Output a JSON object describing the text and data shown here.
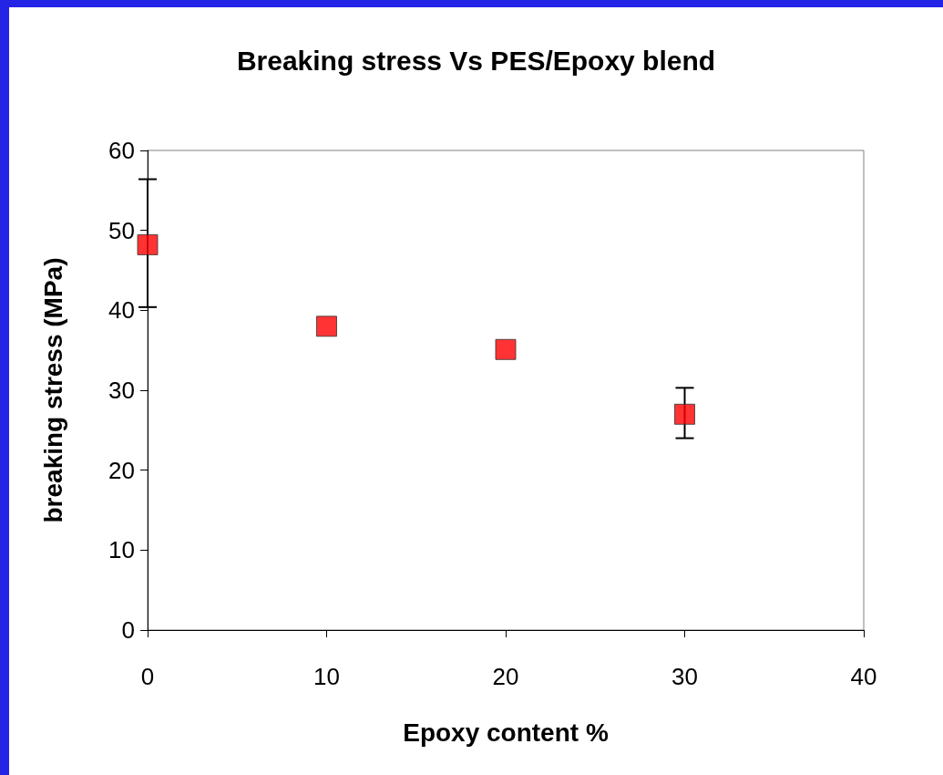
{
  "chart_data": {
    "type": "scatter",
    "title": "Breaking stress Vs PES/Epoxy blend",
    "xlabel": "Epoxy content %",
    "ylabel": "breaking stress (MPa)",
    "x": [
      0,
      10,
      20,
      30
    ],
    "values": [
      48.2,
      38.0,
      35.1,
      27.0
    ],
    "errors": [
      [
        40.4,
        56.4
      ],
      null,
      null,
      [
        24.0,
        30.3
      ]
    ],
    "color": "#ff0000",
    "marker": "square",
    "xlim": [
      0,
      40
    ],
    "xticks": [
      0,
      10,
      20,
      30,
      40
    ],
    "ylim": [
      0,
      60
    ],
    "yticks": [
      0,
      10,
      20,
      30,
      40,
      50,
      60
    ],
    "grid": false
  }
}
